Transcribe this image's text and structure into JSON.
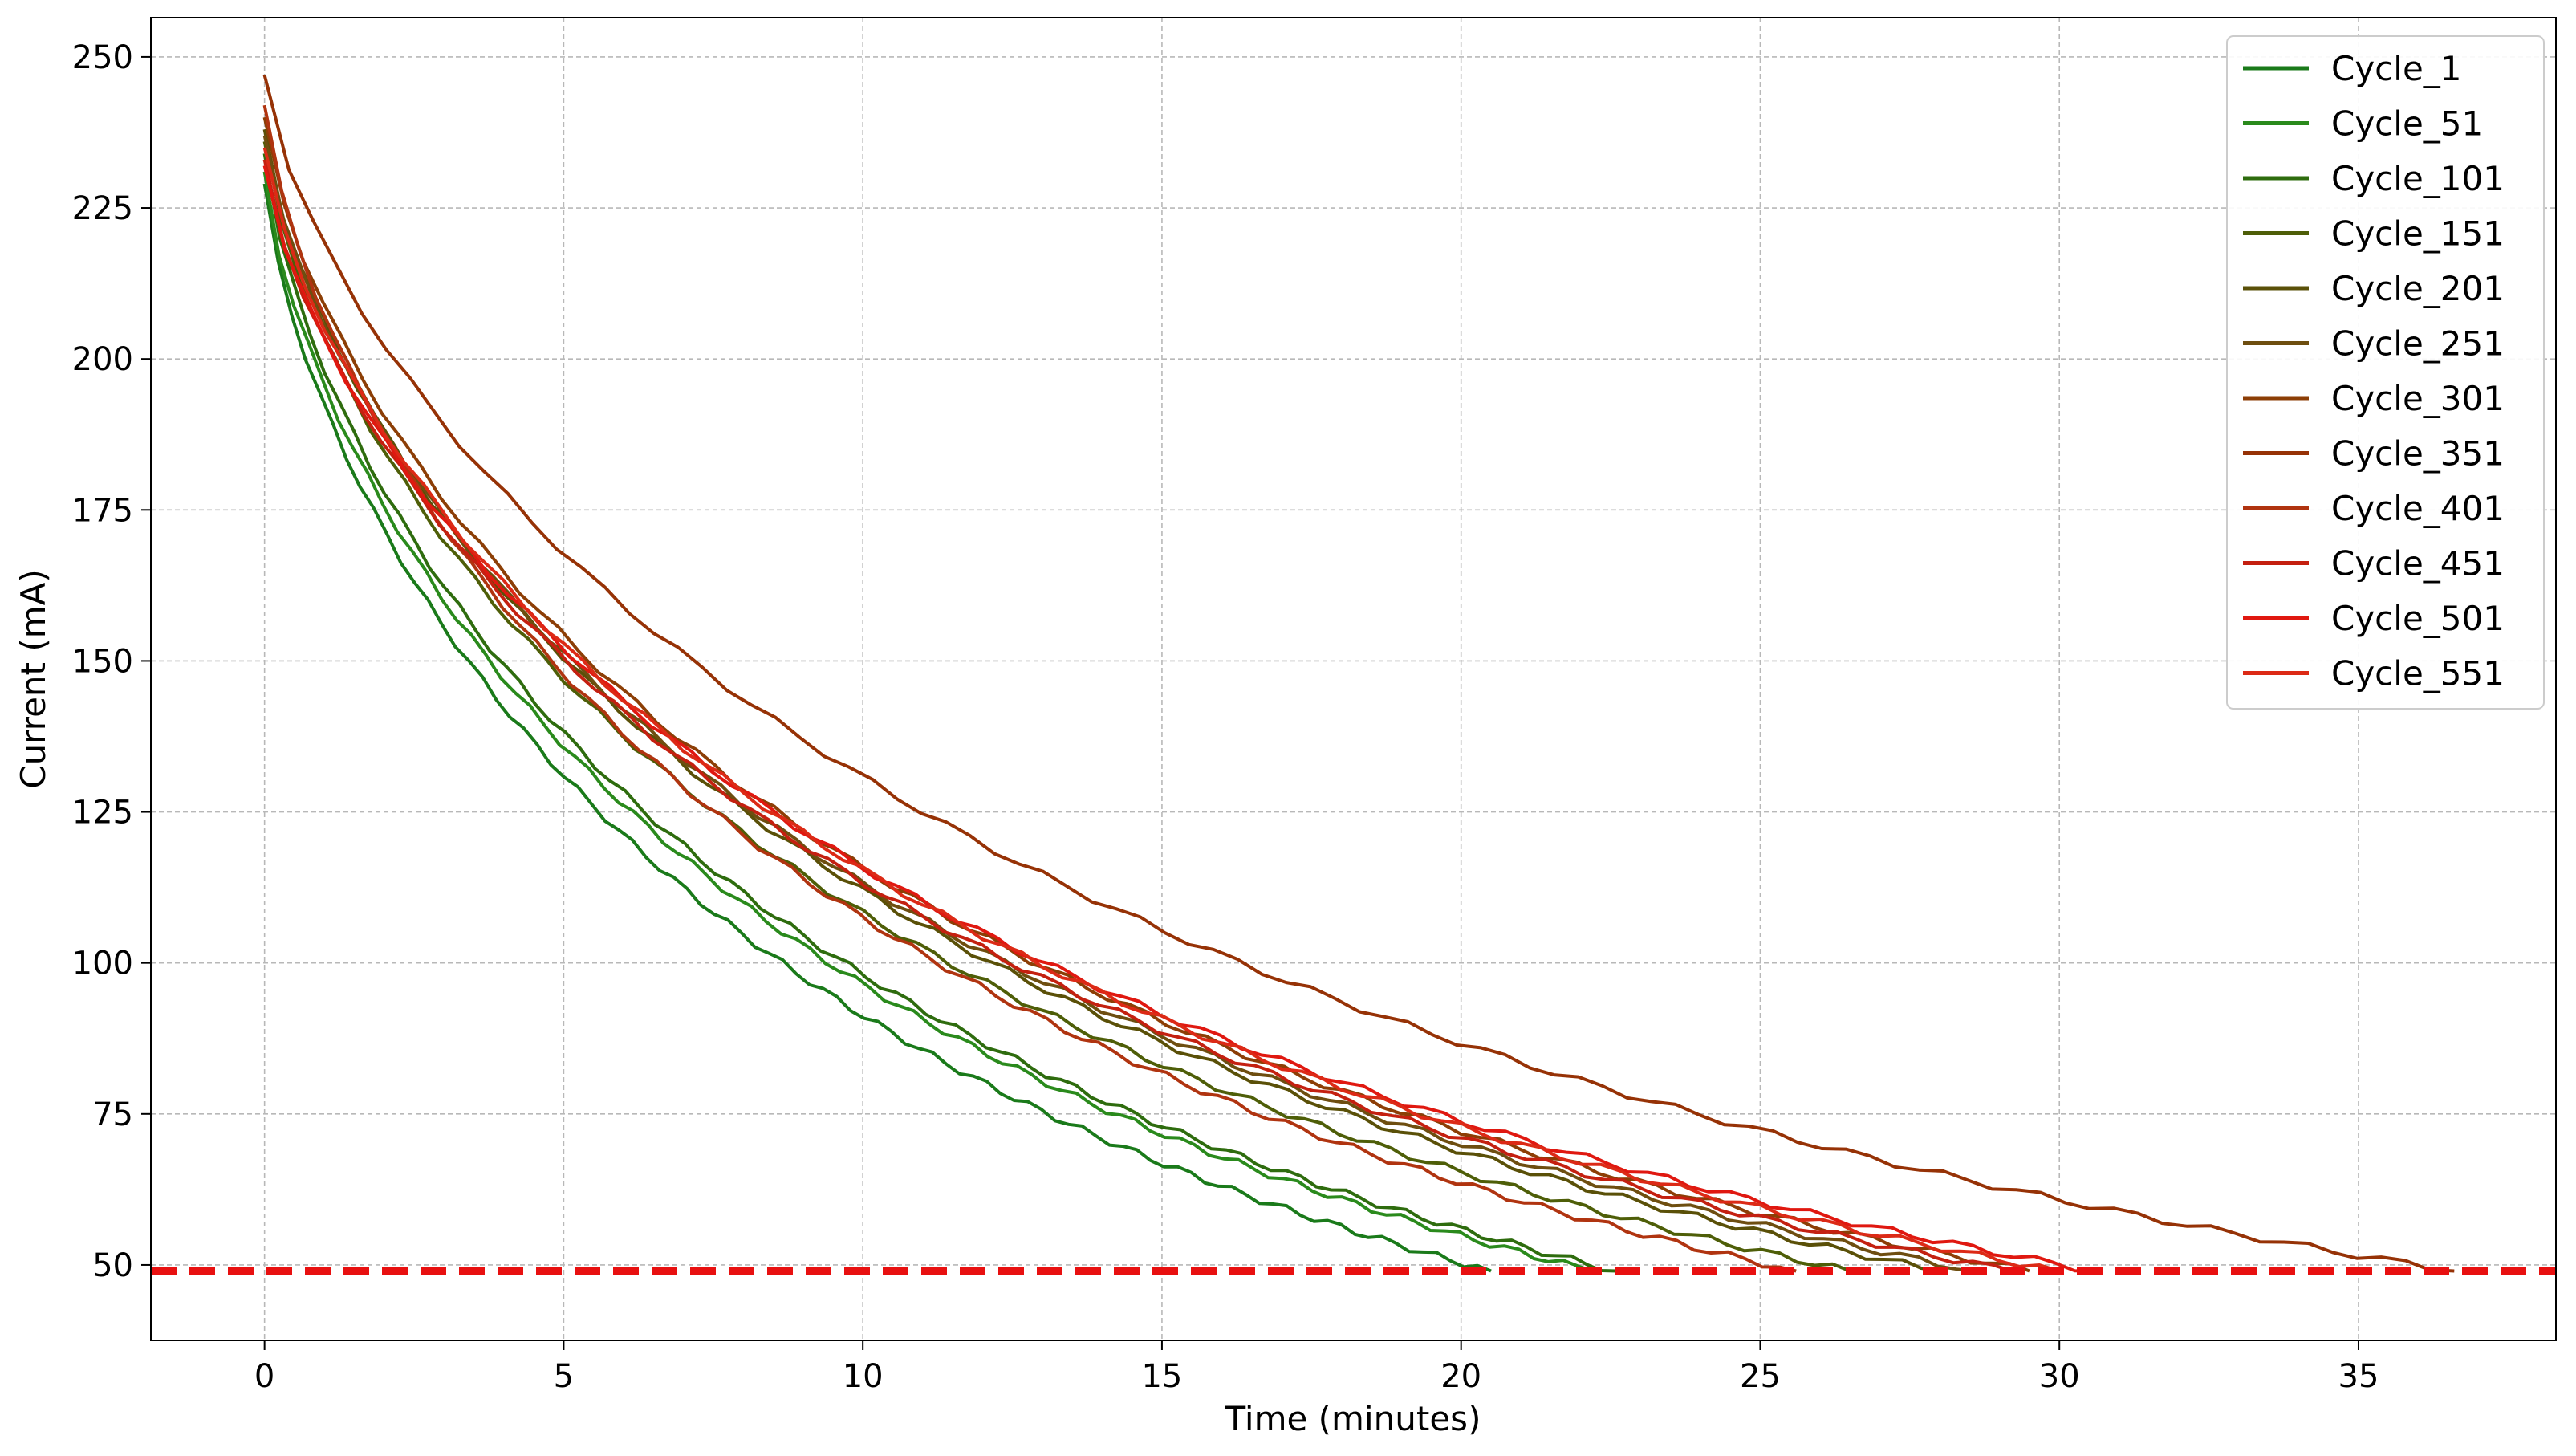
{
  "chart_data": {
    "type": "line",
    "xlabel": "Time (minutes)",
    "ylabel": "Current (mA)",
    "xlim": [
      -1.9,
      38.3
    ],
    "ylim": [
      37.5,
      256.5
    ],
    "xticks": [
      0,
      5,
      10,
      15,
      20,
      25,
      30,
      35
    ],
    "yticks": [
      50,
      75,
      100,
      125,
      150,
      175,
      200,
      225,
      250
    ],
    "grid": true,
    "legend_position": "top-right",
    "threshold": {
      "y": 49,
      "color": "#e81010",
      "style": "dashed"
    },
    "series": [
      {
        "name": "Cycle_1",
        "color": "#1a7a1a",
        "start": 229,
        "end_x": 20.5
      },
      {
        "name": "Cycle_51",
        "color": "#2a8a1c",
        "start": 231,
        "end_x": 22.2
      },
      {
        "name": "Cycle_101",
        "color": "#2e6c0e",
        "start": 234,
        "end_x": 22.6
      },
      {
        "name": "Cycle_151",
        "color": "#4e5e08",
        "start": 236,
        "end_x": 26.5
      },
      {
        "name": "Cycle_201",
        "color": "#5a5008",
        "start": 238,
        "end_x": 28.0
      },
      {
        "name": "Cycle_251",
        "color": "#6e4e10",
        "start": 237,
        "end_x": 28.6
      },
      {
        "name": "Cycle_301",
        "color": "#8c3e06",
        "start": 240,
        "end_x": 29.5
      },
      {
        "name": "Cycle_351",
        "color": "#963206",
        "start": 247,
        "end_x": 36.6
      },
      {
        "name": "Cycle_401",
        "color": "#b03410",
        "start": 242,
        "end_x": 25.6
      },
      {
        "name": "Cycle_451",
        "color": "#c42010",
        "start": 233,
        "end_x": 29.2
      },
      {
        "name": "Cycle_501",
        "color": "#e01810",
        "start": 232,
        "end_x": 30.6
      },
      {
        "name": "Cycle_551",
        "color": "#dc2a16",
        "start": 235,
        "end_x": 30.0
      }
    ]
  }
}
